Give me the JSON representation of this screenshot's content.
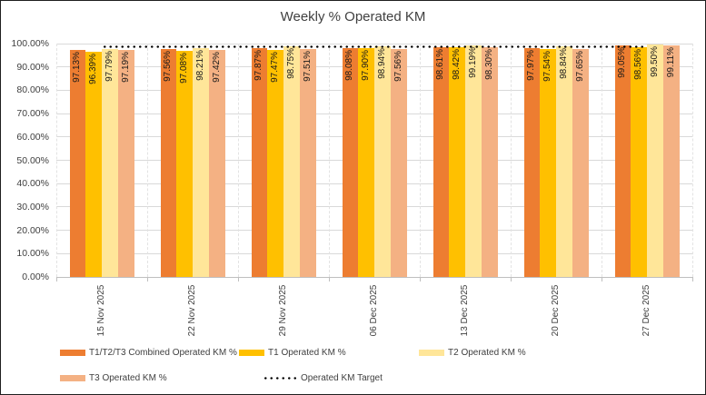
{
  "chart_data": {
    "type": "bar",
    "title": "Weekly % Operated KM",
    "categories": [
      "15 Nov 2025",
      "22 Nov 2025",
      "29 Nov 2025",
      "06 Dec 2025",
      "13 Dec 2025",
      "20 Dec 2025",
      "27 Dec 2025"
    ],
    "series": [
      {
        "name": "T1/T2/T3 Combined Operated KM %",
        "color": "#ED7D31",
        "values": [
          97.13,
          97.56,
          97.87,
          98.08,
          98.61,
          97.97,
          99.05
        ]
      },
      {
        "name": "T1 Operated KM %",
        "color": "#FFC000",
        "values": [
          96.39,
          97.08,
          97.47,
          97.9,
          98.42,
          97.54,
          98.56
        ]
      },
      {
        "name": "T2 Operated KM %",
        "color": "#FFE699",
        "values": [
          97.79,
          98.21,
          98.75,
          98.94,
          99.19,
          98.84,
          99.5
        ]
      },
      {
        "name": "T3 Operated KM %",
        "color": "#F4B183",
        "values": [
          97.19,
          97.42,
          97.51,
          97.56,
          98.3,
          97.65,
          99.11
        ]
      }
    ],
    "target_line": {
      "name": "Operated KM Target",
      "value": 98.5,
      "color": "#000000",
      "style": "dotted"
    },
    "data_label_format": "0.00%",
    "y_axis": {
      "min": 0,
      "max": 100,
      "step": 10,
      "tick_labels": [
        "100.00%",
        "90.00%",
        "80.00%",
        "70.00%",
        "60.00%",
        "50.00%",
        "40.00%",
        "30.00%",
        "20.00%",
        "10.00%",
        "0.00%"
      ]
    },
    "grid": true,
    "legend_position": "bottom"
  }
}
